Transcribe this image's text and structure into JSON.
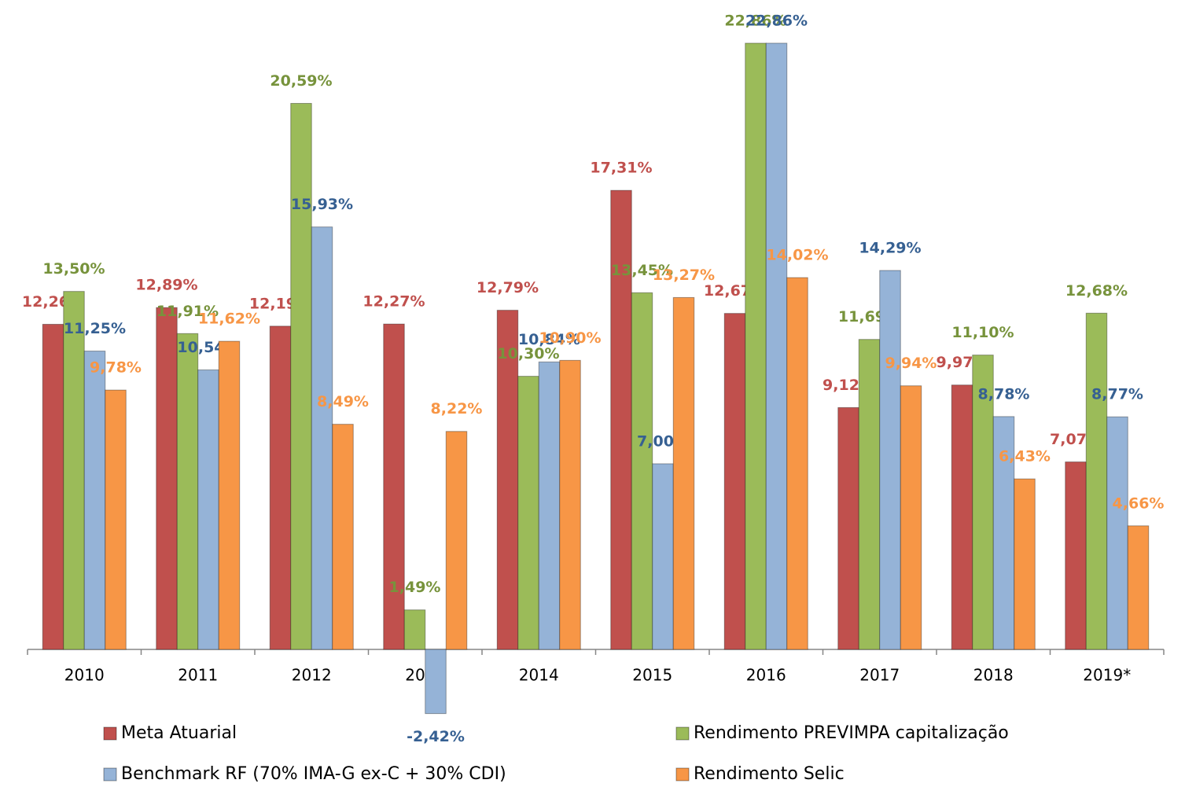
{
  "chart_data": {
    "type": "bar",
    "categories": [
      "2010",
      "2011",
      "2012",
      "2013",
      "2014",
      "2015",
      "2016",
      "2017",
      "2018",
      "2019*"
    ],
    "series": [
      {
        "name": "Meta Atuarial",
        "color": "#c0504d",
        "label_color": "#c0504d",
        "values": [
          12.26,
          12.89,
          12.19,
          12.27,
          12.79,
          17.31,
          12.67,
          9.12,
          9.97,
          7.07
        ],
        "value_labels": [
          "12,26%",
          "12,89%",
          "12,19%",
          "12,27%",
          "12,79%",
          "17,31%",
          "12,67%",
          "9,12%",
          "9,97%",
          "7,07%"
        ]
      },
      {
        "name": "Rendimento PREVIMPA capitalização",
        "color": "#9bbb59",
        "label_color": "#77933c",
        "values": [
          13.5,
          11.91,
          20.59,
          1.49,
          10.3,
          13.45,
          22.86,
          11.69,
          11.1,
          12.68
        ],
        "value_labels": [
          "13,50%",
          "11,91%",
          "20,59%",
          "1,49%",
          "10,30%",
          "13,45%",
          "22,86%",
          "11,69%",
          "11,10%",
          "12,68%"
        ]
      },
      {
        "name": "Benchmark RF (70% IMA-G ex-C + 30% CDI)",
        "color": "#95b3d7",
        "label_color": "#366092",
        "values": [
          11.25,
          10.54,
          15.93,
          -2.42,
          10.84,
          7.0,
          22.86,
          14.29,
          8.78,
          8.77
        ],
        "value_labels": [
          "11,25%",
          "10,54%",
          "15,93%",
          "-2,42%",
          "10,84%",
          "7,00%",
          "22,86%",
          "14,29%",
          "8,78%",
          "8,77%"
        ]
      },
      {
        "name": "Rendimento Selic",
        "color": "#f79646",
        "label_color": "#f79646",
        "values": [
          9.78,
          11.62,
          8.49,
          8.22,
          10.9,
          13.27,
          14.02,
          9.94,
          6.43,
          4.66
        ],
        "value_labels": [
          "9,78%",
          "11,62%",
          "8,49%",
          "8,22%",
          "10,90%",
          "13,27%",
          "14,02%",
          "9,94%",
          "6,43%",
          "4,66%"
        ]
      }
    ]
  }
}
